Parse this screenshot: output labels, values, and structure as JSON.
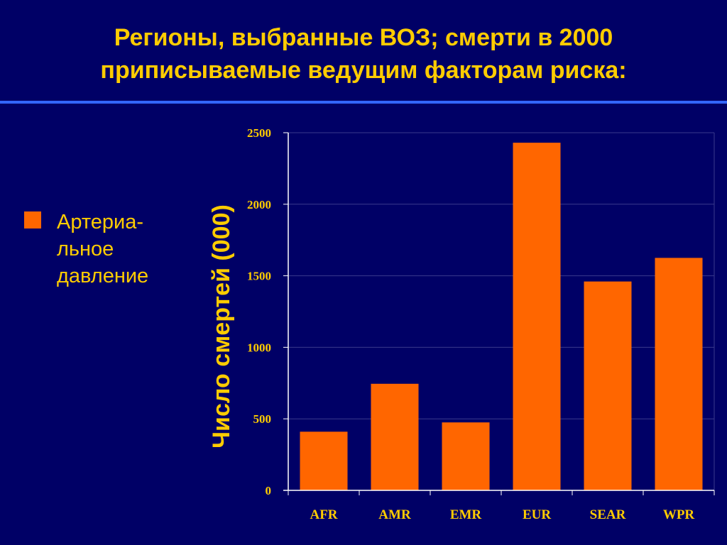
{
  "slide": {
    "title_line1": "Регионы, выбранные ВОЗ; смерти в 2000",
    "title_line2": "приписываемые ведущим факторам риска:"
  },
  "legend": {
    "label": "Артериа-льное давление",
    "color": "#FF6600"
  },
  "colors": {
    "background": "#000066",
    "text": "#FFCC00",
    "rule": "#3366FF",
    "bars": "#FF6600",
    "gridline": "#3a3a8c",
    "axis": "#FFFFFF"
  },
  "chart_data": {
    "type": "bar",
    "categories": [
      "AFR",
      "AMR",
      "EMR",
      "EUR",
      "SEAR",
      "WPR"
    ],
    "series": [
      {
        "name": "Артериа-льное давление",
        "values": [
          410,
          745,
          475,
          2430,
          1460,
          1625
        ]
      }
    ],
    "ylabel": "Число смертей (000)",
    "xlabel": "",
    "ylim": [
      0,
      2500
    ],
    "yticks": [
      0,
      500,
      1000,
      1500,
      2000,
      2500
    ],
    "ytick_labels": [
      "0",
      "500",
      "1000",
      "1500",
      "2000",
      "2500"
    ],
    "grid": true,
    "legend_position": "left"
  }
}
